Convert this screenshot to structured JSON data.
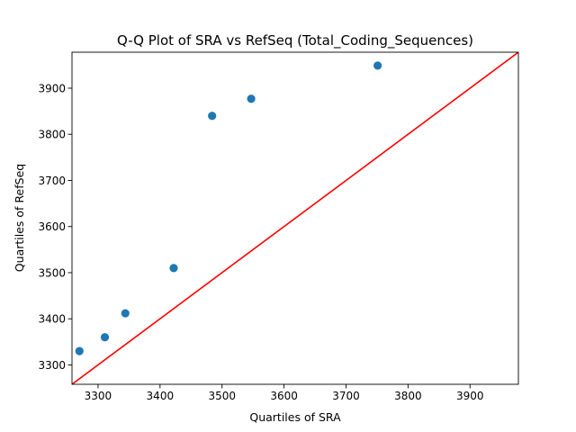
{
  "chart_data": {
    "type": "scatter",
    "title": "Q-Q Plot of SRA vs RefSeq (Total_Coding_Sequences)",
    "xlabel": "Quartiles of SRA",
    "ylabel": "Quartiles of RefSeq",
    "xlim": [
      3258,
      3978
    ],
    "ylim": [
      3258,
      3978
    ],
    "x_ticks": [
      3300,
      3400,
      3500,
      3600,
      3700,
      3800,
      3900
    ],
    "y_ticks": [
      3300,
      3400,
      3500,
      3600,
      3700,
      3800,
      3900
    ],
    "grid": false,
    "points": [
      {
        "x": 3270,
        "y": 3330
      },
      {
        "x": 3311,
        "y": 3360
      },
      {
        "x": 3344,
        "y": 3412
      },
      {
        "x": 3422,
        "y": 3510
      },
      {
        "x": 3484,
        "y": 3840
      },
      {
        "x": 3547,
        "y": 3877
      },
      {
        "x": 3751,
        "y": 3949
      }
    ],
    "reference_line": {
      "from": [
        3258,
        3258
      ],
      "to": [
        3978,
        3978
      ]
    },
    "colors": {
      "points": "#1f77b4",
      "reference_line": "#ff0000"
    }
  }
}
